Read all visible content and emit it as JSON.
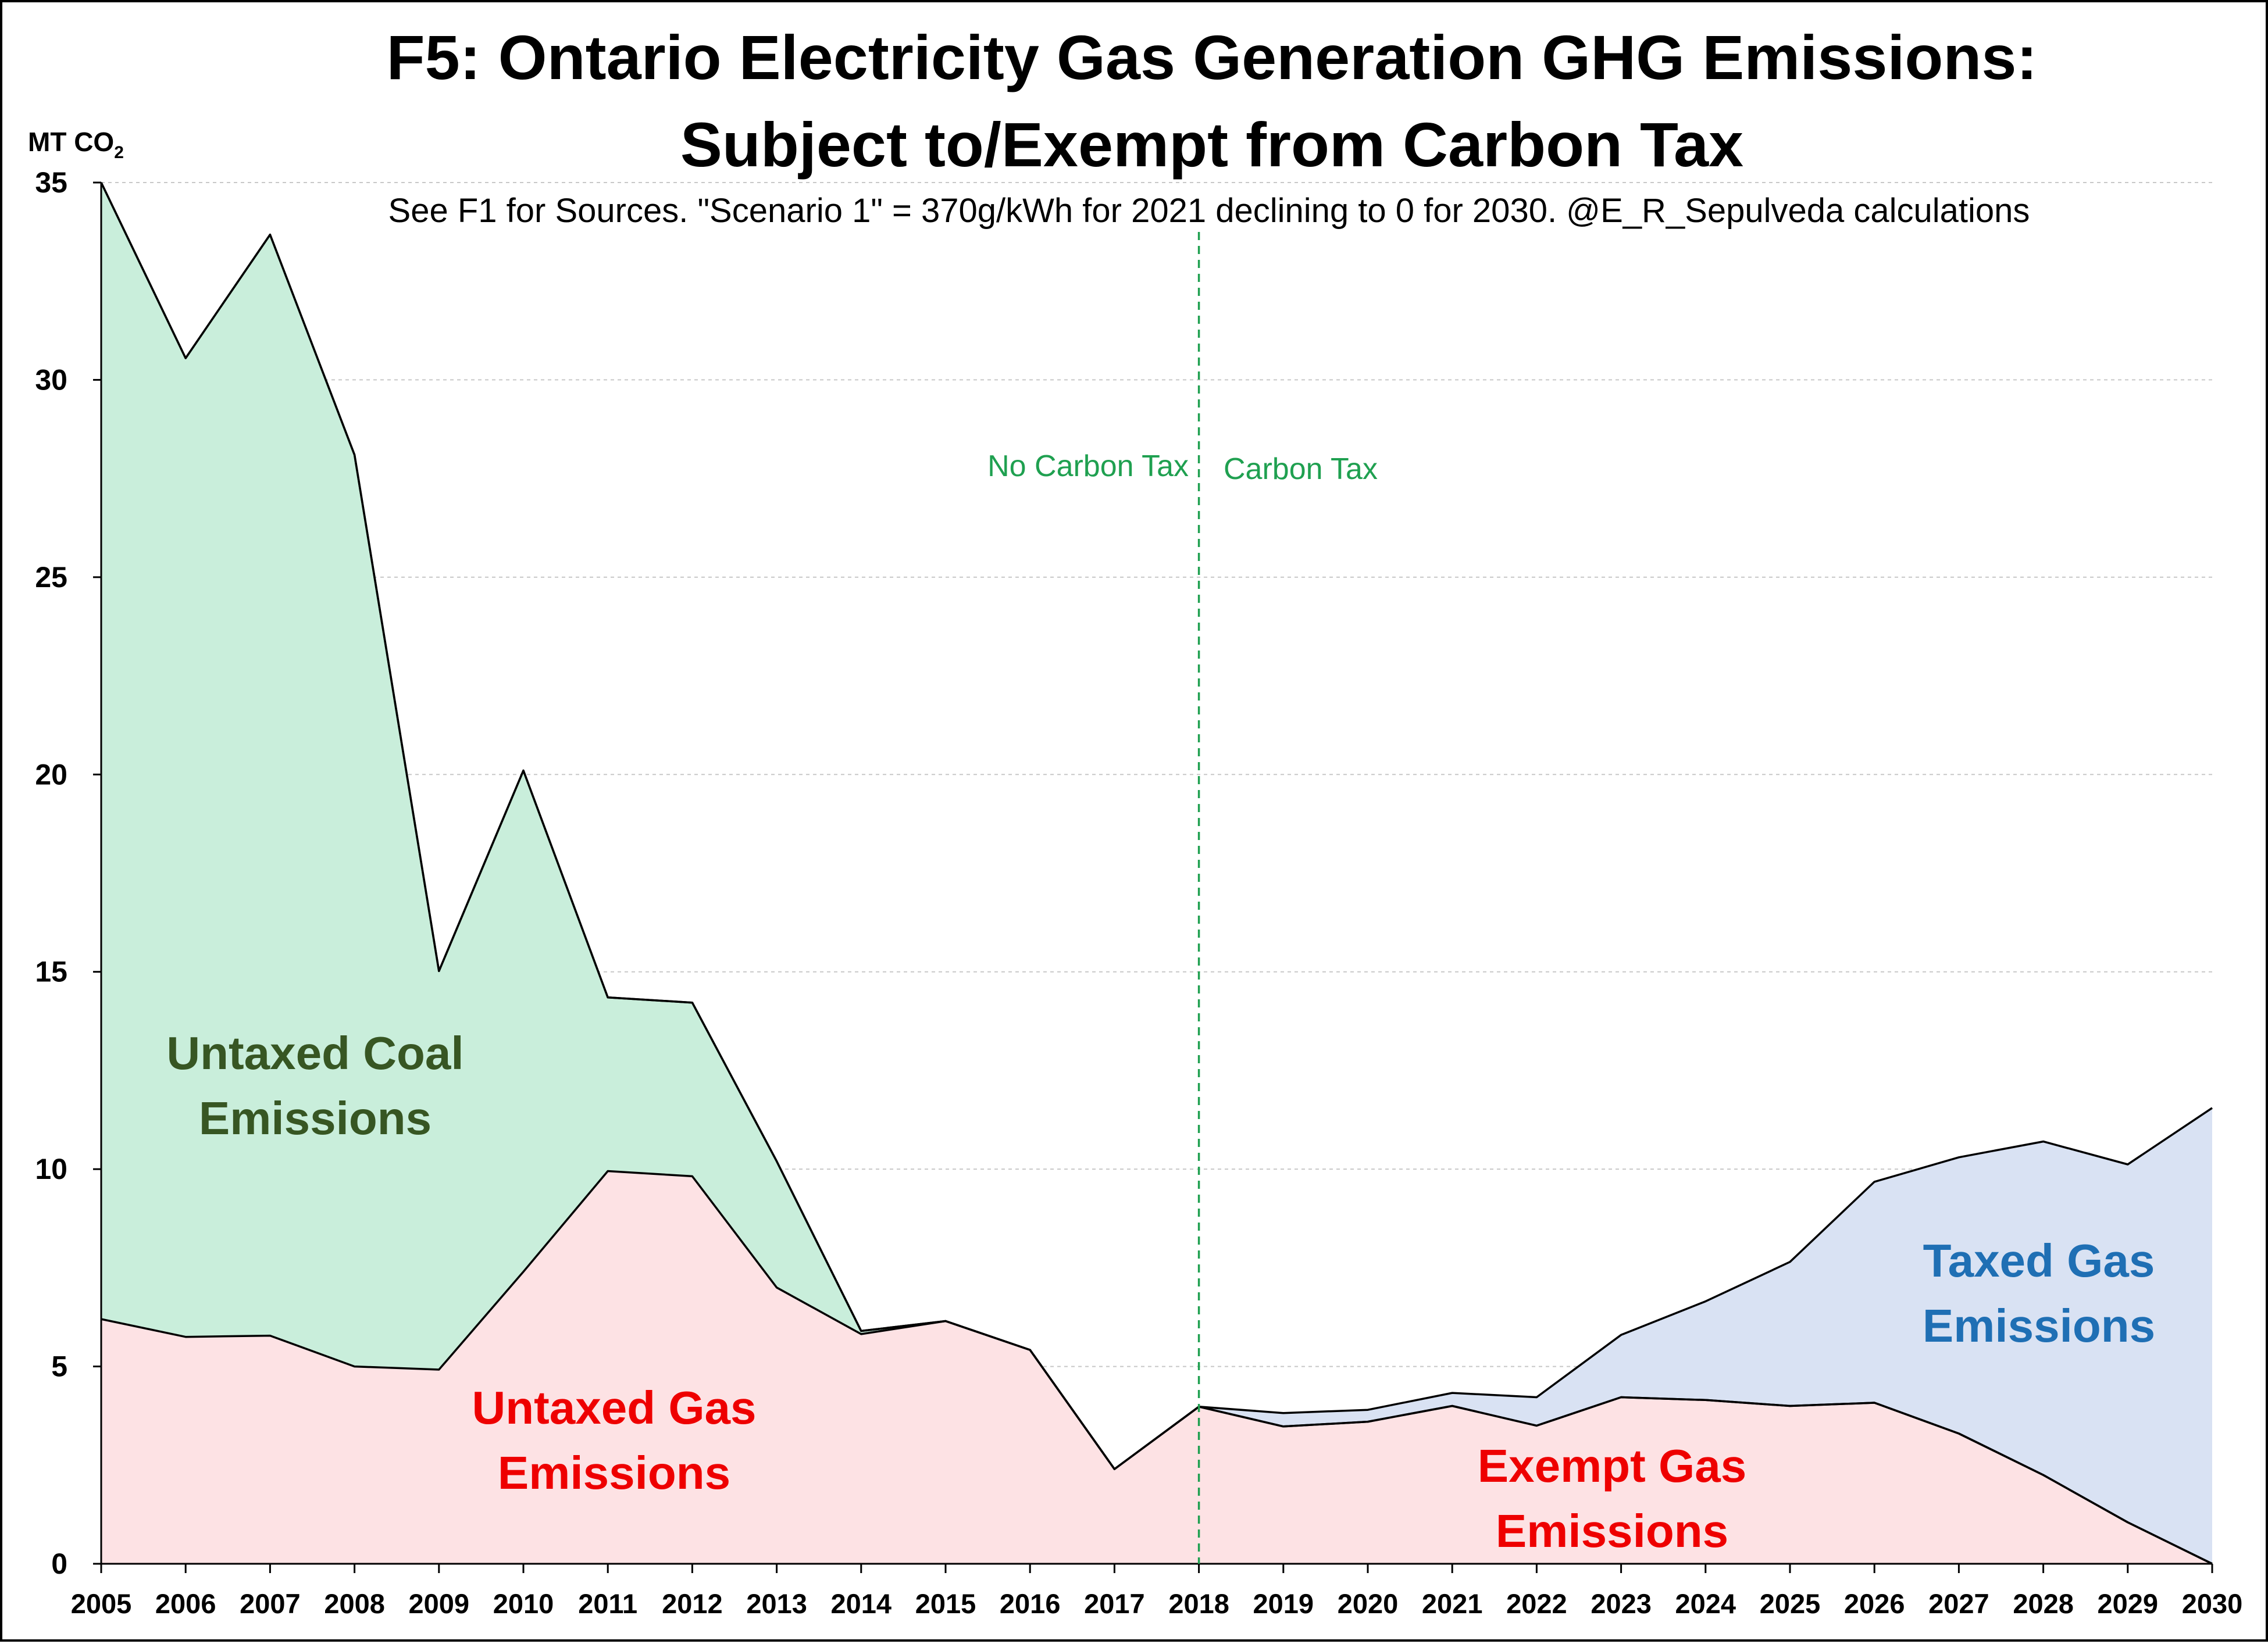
{
  "chart_data": {
    "type": "area",
    "stacked": true,
    "title_line1": "F5: Ontario Electricity Gas Generation GHG Emissions:",
    "title_line2": "Subject to/Exempt from Carbon Tax",
    "subtitle": "See F1 for Sources. \"Scenario 1\" = 370g/kWh for 2021 declining to 0 for 2030. @E_R_Sepulveda calculations",
    "ylabel_main": "MT CO",
    "ylabel_sub": "2",
    "ylim": [
      0,
      35
    ],
    "yticks": [
      "0",
      "5",
      "10",
      "15",
      "20",
      "25",
      "30",
      "35"
    ],
    "grid": "horizontal dashed",
    "x": [
      "2005",
      "2006",
      "2007",
      "2008",
      "2009",
      "2010",
      "2011",
      "2012",
      "2013",
      "2014",
      "2015",
      "2016",
      "2017",
      "2018",
      "2019",
      "2020",
      "2021",
      "2022",
      "2023",
      "2024",
      "2025",
      "2026",
      "2027",
      "2028",
      "2029",
      "2030"
    ],
    "series": [
      {
        "key": "lower",
        "color": "#fde2e4",
        "values": [
          6.2,
          5.75,
          5.78,
          5.0,
          4.92,
          7.4,
          9.95,
          9.82,
          7.0,
          5.82,
          6.15,
          5.42,
          2.4,
          3.98,
          3.48,
          3.6,
          4.0,
          3.5,
          4.22,
          4.15,
          4.0,
          4.08,
          3.3,
          2.25,
          1.05,
          0.0
        ]
      },
      {
        "key": "coal",
        "color": "#c9eedb",
        "values": [
          28.8,
          24.8,
          27.9,
          23.1,
          10.1,
          12.7,
          4.4,
          4.4,
          3.2,
          0.08,
          0.0,
          0.0,
          0.0,
          0.0,
          0.0,
          0.0,
          0.0,
          0.0,
          0.0,
          0.0,
          0.0,
          0.0,
          0.0,
          0.0,
          0.0,
          0.0
        ]
      },
      {
        "key": "taxed",
        "color": "#d9e2f3",
        "values": [
          0,
          0,
          0,
          0,
          0,
          0,
          0,
          0,
          0,
          0,
          0,
          0,
          0,
          0.0,
          0.34,
          0.3,
          0.33,
          0.72,
          1.58,
          2.5,
          3.65,
          5.6,
          7.0,
          8.45,
          9.07,
          11.55
        ]
      }
    ],
    "carbon_tax_year": "2018",
    "annotations": {
      "no_tax": "No Carbon Tax",
      "tax": "Carbon Tax",
      "coal_line1": "Untaxed Coal",
      "coal_line2": "Emissions",
      "untaxed_gas_line1": "Untaxed Gas",
      "untaxed_gas_line2": "Emissions",
      "exempt_gas_line1": "Exempt Gas",
      "exempt_gas_line2": "Emissions",
      "taxed_gas_line1": "Taxed Gas",
      "taxed_gas_line2": "Emissions"
    },
    "label_colors": {
      "coal": "#375623",
      "untaxed_gas": "#ee0000",
      "exempt_gas": "#ee0000",
      "taxed_gas": "#1f6fb4"
    }
  }
}
